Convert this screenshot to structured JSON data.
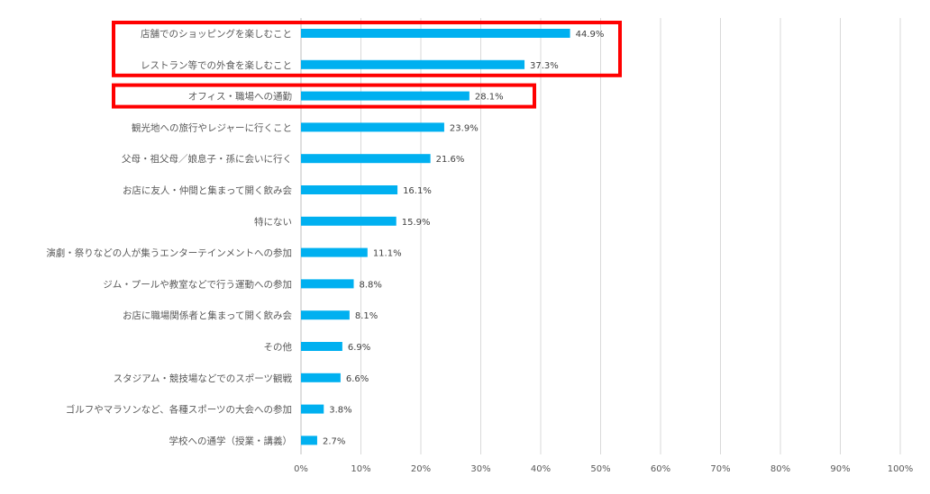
{
  "chart_data": {
    "type": "bar",
    "orientation": "horizontal",
    "title": "",
    "xlabel": "",
    "ylabel": "",
    "xlim": [
      0,
      100
    ],
    "grid": true,
    "bar_color": "#00b0f0",
    "highlight_color": "#ff0000",
    "ticks": [
      "0%",
      "10%",
      "20%",
      "30%",
      "40%",
      "50%",
      "60%",
      "70%",
      "80%",
      "90%",
      "100%"
    ],
    "categories": [
      "店舗でのショッピングを楽しむこと",
      "レストラン等での外食を楽しむこと",
      "オフィス・職場への通勤",
      "観光地への旅行やレジャーに行くこと",
      "父母・祖父母／娘息子・孫に会いに行く",
      "お店に友人・仲間と集まって開く飲み会",
      "特にない",
      "演劇・祭りなどの人が集うエンターテインメントへの参加",
      "ジム・プールや教室などで行う運動への参加",
      "お店に職場関係者と集まって開く飲み会",
      "その他",
      "スタジアム・競技場などでのスポーツ観戦",
      "ゴルフやマラソンなど、各種スポーツの大会への参加",
      "学校への通学（授業・講義）"
    ],
    "values": [
      44.9,
      37.3,
      28.1,
      23.9,
      21.6,
      16.1,
      15.9,
      11.1,
      8.8,
      8.1,
      6.9,
      6.6,
      3.8,
      2.7
    ],
    "value_labels": [
      "44.9%",
      "37.3%",
      "28.1%",
      "23.9%",
      "21.6%",
      "16.1%",
      "15.9%",
      "11.1%",
      "8.8%",
      "8.1%",
      "6.9%",
      "6.6%",
      "3.8%",
      "2.7%"
    ],
    "highlight_groups": [
      [
        0,
        1
      ],
      [
        2
      ]
    ]
  }
}
